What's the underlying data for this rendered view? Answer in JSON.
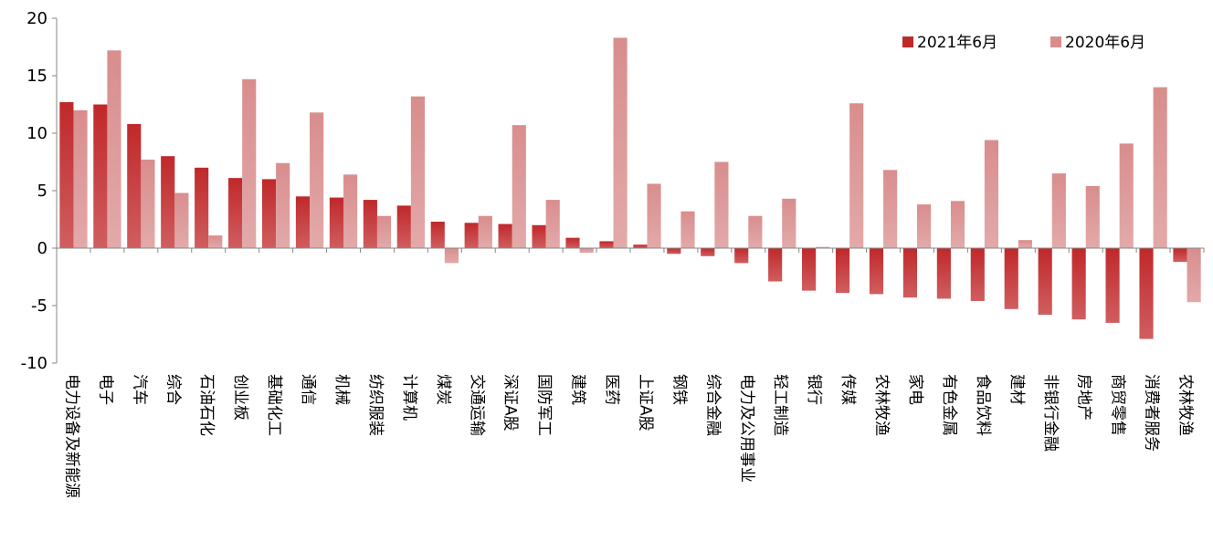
{
  "chart_data": {
    "type": "bar",
    "title": "",
    "xlabel": "",
    "ylabel": "",
    "ylim": [
      -10,
      20
    ],
    "yticks": [
      -10,
      -5,
      0,
      5,
      10,
      15,
      20
    ],
    "grid": false,
    "legend_position": "top-right",
    "categories": [
      "电力设备及新能源",
      "电子",
      "汽车",
      "综合",
      "石油石化",
      "创业板",
      "基础化工",
      "通信",
      "机械",
      "纺织服装",
      "计算机",
      "煤炭",
      "交通运输",
      "深证A股",
      "国防军工",
      "建筑",
      "医药",
      "上证A股",
      "钢铁",
      "综合金融",
      "电力及公用事业",
      "轻工制造",
      "银行",
      "传媒",
      "农林牧渔",
      "家电",
      "有色金属",
      "食品饮料",
      "建材",
      "非银行金融",
      "房地产",
      "商贸零售",
      "消费者服务",
      "农林牧渔"
    ],
    "series": [
      {
        "name": "2021年6月",
        "color": "#c0282a",
        "values": [
          12.7,
          12.5,
          10.8,
          8.0,
          7.0,
          6.1,
          6.0,
          4.5,
          4.4,
          4.2,
          3.7,
          2.3,
          2.2,
          2.1,
          2.0,
          0.9,
          0.6,
          0.3,
          -0.5,
          -0.7,
          -1.3,
          -2.9,
          -3.7,
          -3.9,
          -4.0,
          -4.3,
          -4.4,
          -4.6,
          -5.3,
          -5.8,
          -6.2,
          -6.5,
          -7.9,
          -1.2
        ]
      },
      {
        "name": "2020年6月",
        "color": "#d98d8d",
        "values": [
          12.0,
          17.2,
          7.7,
          4.8,
          1.1,
          14.7,
          7.4,
          11.8,
          6.4,
          2.8,
          13.2,
          -1.3,
          2.8,
          10.7,
          4.2,
          -0.4,
          18.3,
          5.6,
          3.2,
          7.5,
          2.8,
          4.3,
          0.1,
          12.6,
          6.8,
          3.8,
          4.1,
          9.4,
          0.7,
          6.5,
          5.4,
          9.1,
          14.0,
          -4.7
        ]
      }
    ]
  }
}
